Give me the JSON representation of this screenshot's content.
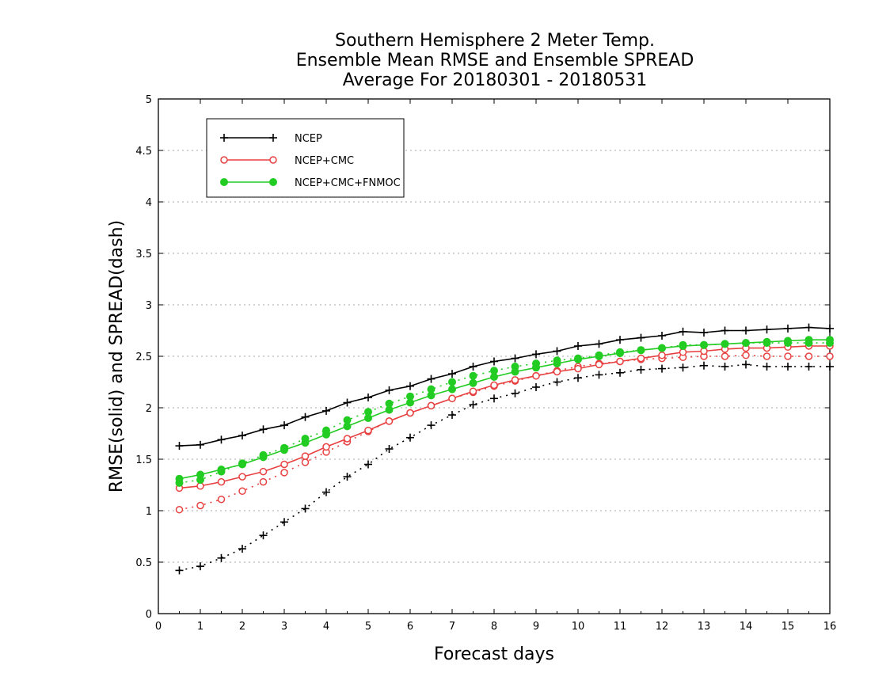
{
  "chart_data": {
    "type": "line",
    "title": [
      "Southern Hemisphere 2 Meter Temp.",
      "Ensemble Mean RMSE and Ensemble SPREAD",
      "Average For 20180301 - 20180531"
    ],
    "xlabel": "Forecast days",
    "ylabel": "RMSE(solid) and SPREAD(dash)",
    "xlim": [
      0,
      16
    ],
    "ylim": [
      0,
      5
    ],
    "xticks": [
      "0",
      "1",
      "2",
      "3",
      "4",
      "5",
      "6",
      "7",
      "8",
      "9",
      "10",
      "11",
      "12",
      "13",
      "14",
      "15",
      "16"
    ],
    "yticks": [
      "0",
      "0.5",
      "1",
      "1.5",
      "2",
      "2.5",
      "3",
      "3.5",
      "4",
      "4.5",
      "5"
    ],
    "grid": true,
    "legend_position": "top-left",
    "x": [
      0.5,
      1,
      1.5,
      2,
      2.5,
      3,
      3.5,
      4,
      4.5,
      5,
      5.5,
      6,
      6.5,
      7,
      7.5,
      8,
      8.5,
      9,
      9.5,
      10,
      10.5,
      11,
      11.5,
      12,
      12.5,
      13,
      13.5,
      14,
      14.5,
      15,
      15.5,
      16
    ],
    "series": [
      {
        "name": "NCEP",
        "color": "#000000",
        "marker": "plus",
        "rmse": [
          1.63,
          1.64,
          1.69,
          1.73,
          1.79,
          1.83,
          1.91,
          1.97,
          2.05,
          2.1,
          2.17,
          2.21,
          2.28,
          2.33,
          2.4,
          2.45,
          2.48,
          2.52,
          2.55,
          2.6,
          2.62,
          2.66,
          2.68,
          2.7,
          2.74,
          2.73,
          2.75,
          2.75,
          2.76,
          2.77,
          2.78,
          2.77
        ],
        "spread": [
          0.42,
          0.46,
          0.54,
          0.63,
          0.76,
          0.89,
          1.02,
          1.18,
          1.33,
          1.45,
          1.6,
          1.71,
          1.83,
          1.93,
          2.03,
          2.09,
          2.14,
          2.2,
          2.25,
          2.29,
          2.32,
          2.34,
          2.37,
          2.38,
          2.39,
          2.41,
          2.4,
          2.42,
          2.4,
          2.4,
          2.4,
          2.4
        ]
      },
      {
        "name": "NCEP+CMC",
        "color": "#e84040",
        "marker": "circle-open",
        "rmse": [
          1.22,
          1.24,
          1.28,
          1.33,
          1.38,
          1.45,
          1.53,
          1.62,
          1.7,
          1.78,
          1.87,
          1.95,
          2.02,
          2.09,
          2.16,
          2.22,
          2.27,
          2.31,
          2.35,
          2.38,
          2.42,
          2.45,
          2.48,
          2.51,
          2.54,
          2.55,
          2.57,
          2.58,
          2.58,
          2.59,
          2.6,
          2.6
        ],
        "spread": [
          1.01,
          1.05,
          1.11,
          1.19,
          1.28,
          1.37,
          1.47,
          1.57,
          1.67,
          1.77,
          1.87,
          1.95,
          2.02,
          2.09,
          2.15,
          2.21,
          2.26,
          2.31,
          2.36,
          2.4,
          2.43,
          2.45,
          2.47,
          2.48,
          2.49,
          2.5,
          2.5,
          2.51,
          2.5,
          2.5,
          2.5,
          2.5
        ]
      },
      {
        "name": "NCEP+CMC+FNMOC",
        "color": "#22cc22",
        "marker": "circle-filled",
        "rmse": [
          1.31,
          1.35,
          1.4,
          1.45,
          1.52,
          1.59,
          1.66,
          1.74,
          1.82,
          1.9,
          1.98,
          2.05,
          2.12,
          2.18,
          2.24,
          2.3,
          2.35,
          2.39,
          2.43,
          2.47,
          2.5,
          2.53,
          2.56,
          2.58,
          2.6,
          2.61,
          2.62,
          2.63,
          2.64,
          2.65,
          2.66,
          2.66
        ],
        "spread": [
          1.27,
          1.3,
          1.38,
          1.46,
          1.54,
          1.61,
          1.7,
          1.78,
          1.88,
          1.96,
          2.04,
          2.11,
          2.18,
          2.25,
          2.31,
          2.36,
          2.4,
          2.43,
          2.46,
          2.48,
          2.51,
          2.54,
          2.56,
          2.58,
          2.61,
          2.61,
          2.62,
          2.63,
          2.63,
          2.63,
          2.63,
          2.63
        ]
      }
    ]
  }
}
